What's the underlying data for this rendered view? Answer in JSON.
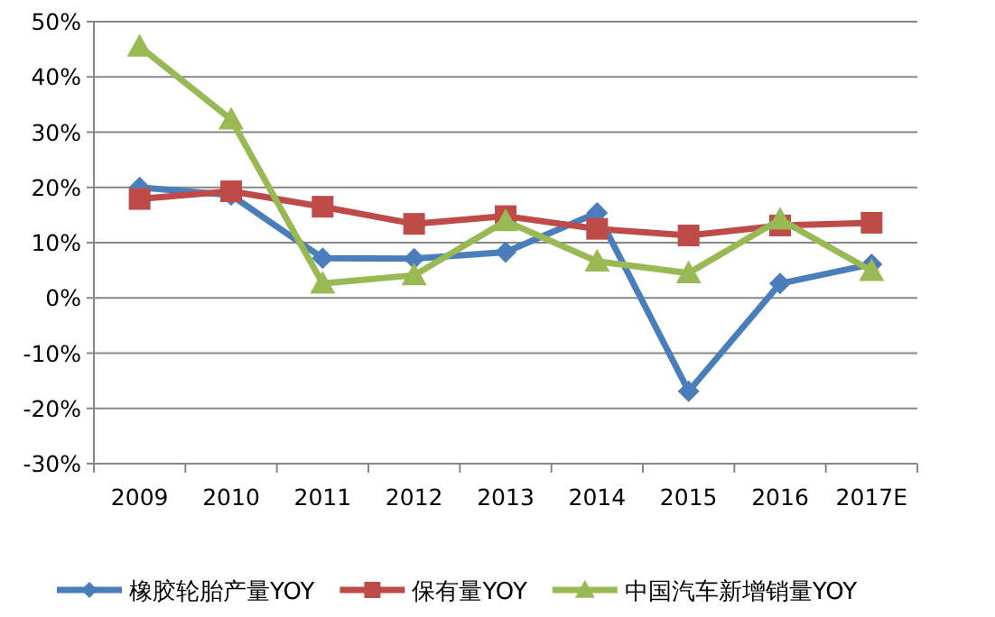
{
  "chart_data": {
    "type": "line",
    "categories": [
      "2009",
      "2010",
      "2011",
      "2012",
      "2013",
      "2014",
      "2015",
      "2016",
      "2017E"
    ],
    "series": [
      {
        "name": "橡胶轮胎产量YOY",
        "color": "#4a7ebb",
        "marker": "diamond",
        "values": [
          20.0,
          18.6,
          7.2,
          7.1,
          8.3,
          15.4,
          -16.9,
          2.6,
          6.1
        ]
      },
      {
        "name": "保有量YOY",
        "color": "#be4b48",
        "marker": "square",
        "values": [
          17.9,
          19.3,
          16.5,
          13.4,
          14.8,
          12.5,
          11.3,
          13.1,
          13.6
        ]
      },
      {
        "name": "中国汽车新增销量YOY",
        "color": "#98b954",
        "marker": "triangle",
        "values": [
          45.5,
          32.3,
          2.6,
          4.1,
          13.9,
          6.6,
          4.5,
          14.2,
          4.9
        ]
      }
    ],
    "ylim": [
      -30,
      50
    ],
    "yticks": [
      {
        "value": -30,
        "label": "-30%"
      },
      {
        "value": -20,
        "label": "-20%"
      },
      {
        "value": -10,
        "label": "-10%"
      },
      {
        "value": 0,
        "label": "0%"
      },
      {
        "value": 10,
        "label": "10%"
      },
      {
        "value": 20,
        "label": "20%"
      },
      {
        "value": 30,
        "label": "30%"
      },
      {
        "value": 40,
        "label": "40%"
      },
      {
        "value": 50,
        "label": "50%"
      }
    ],
    "grid": "y",
    "legend": "bottom"
  }
}
